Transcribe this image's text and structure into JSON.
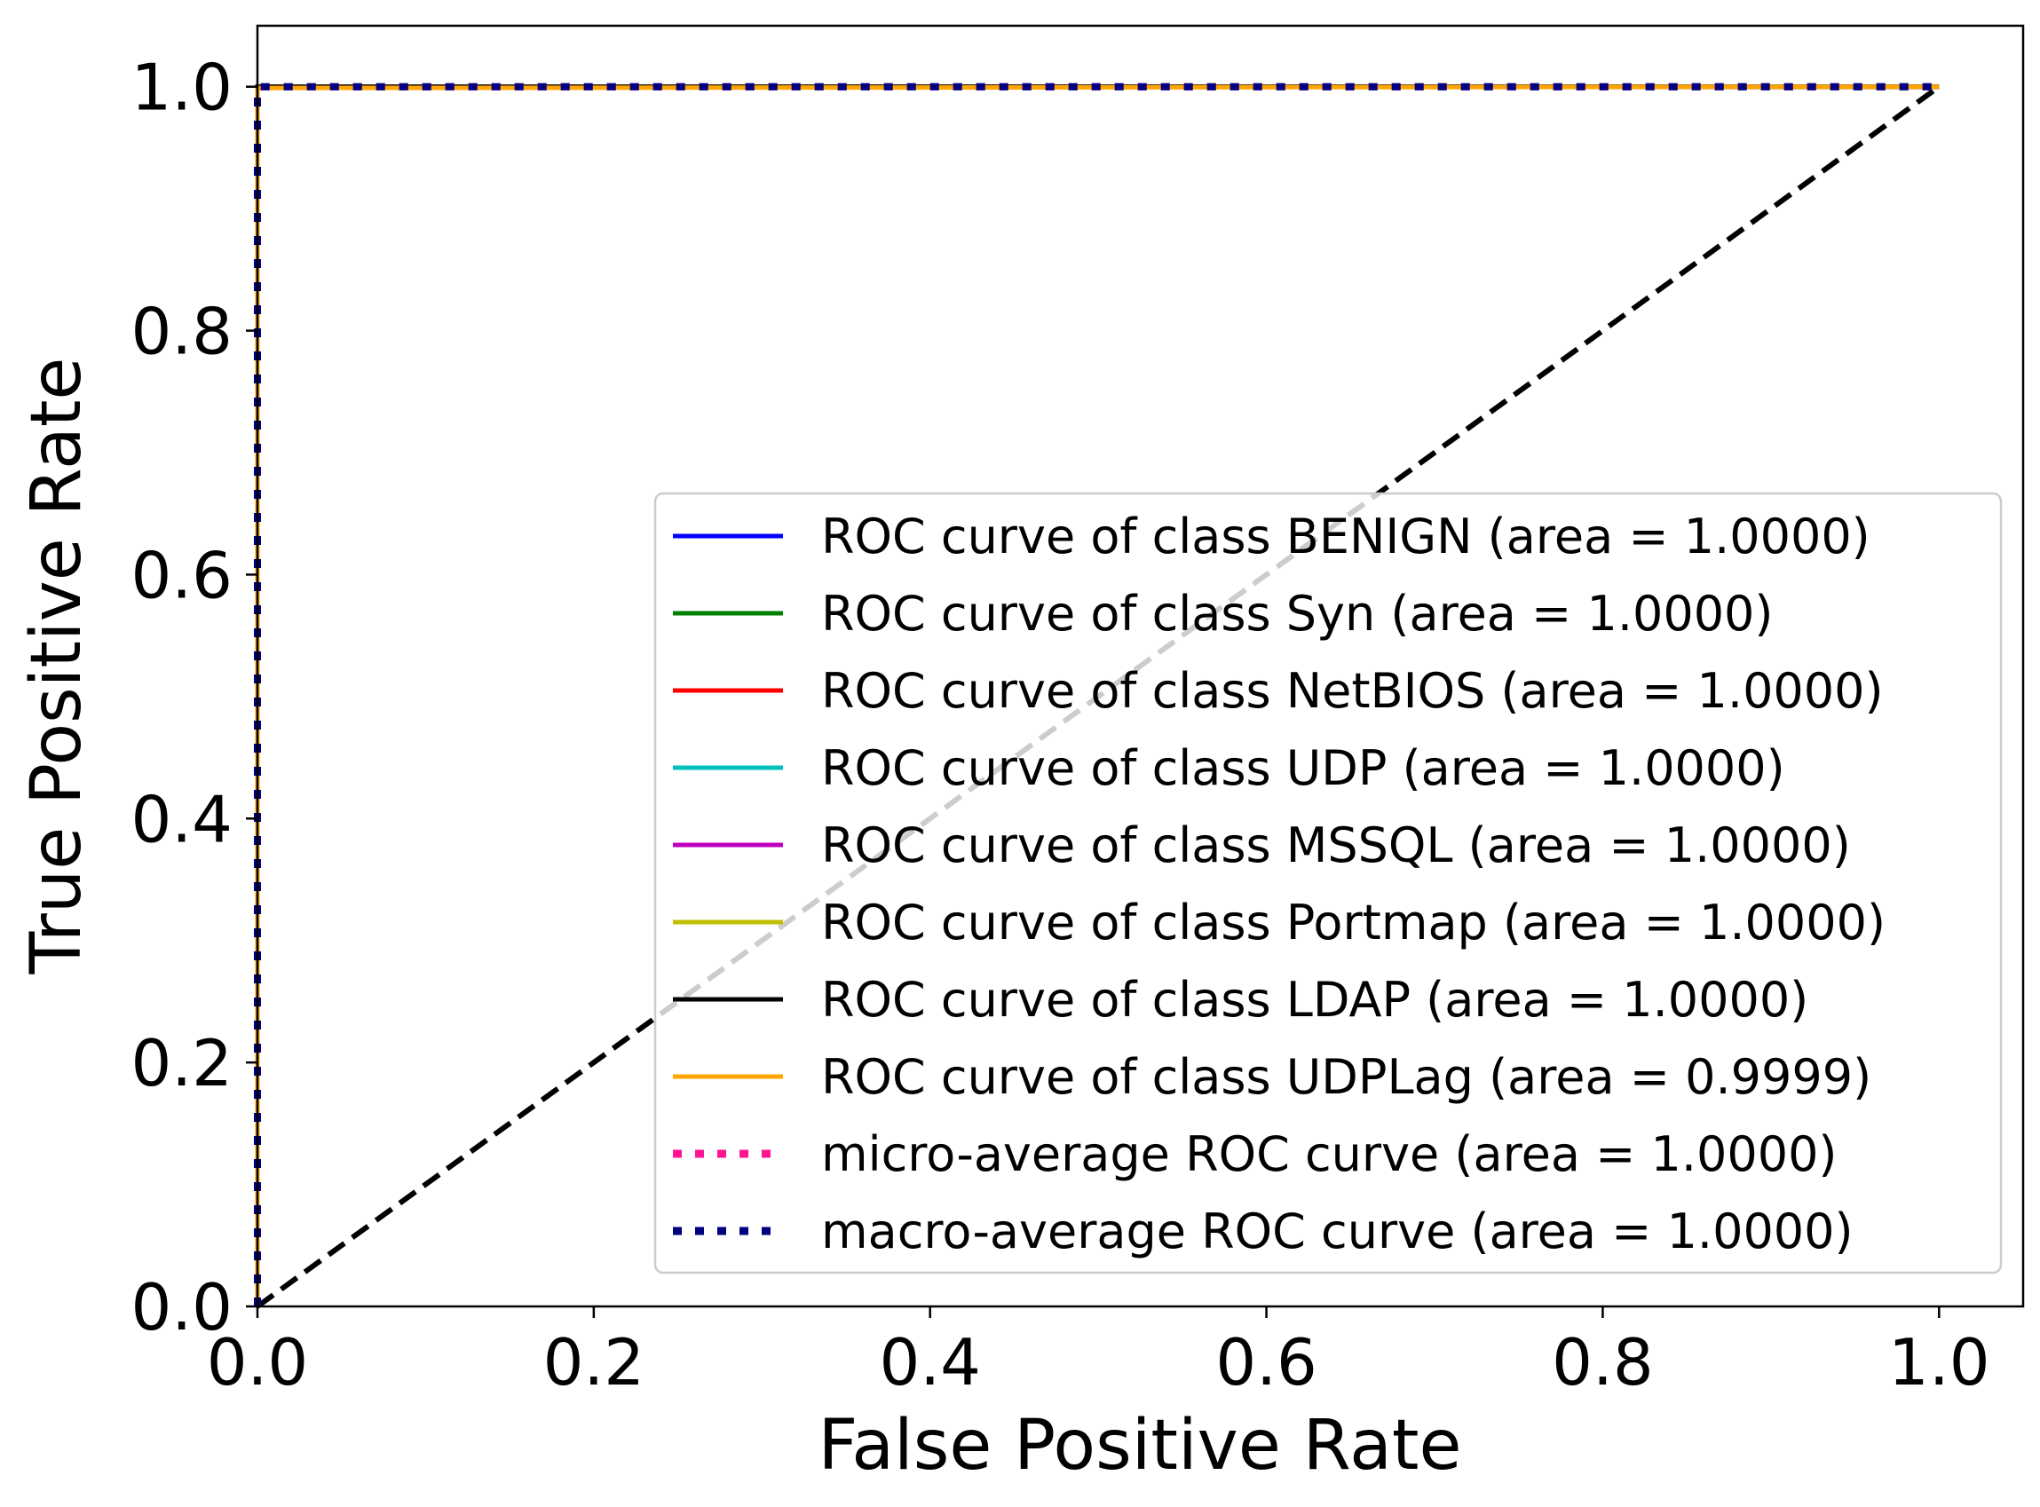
{
  "chart_data": {
    "type": "line",
    "title": "",
    "xlabel": "False Positive Rate",
    "ylabel": "True Positive Rate",
    "xlim": [
      0.0,
      1.05
    ],
    "ylim": [
      0.0,
      1.05
    ],
    "x_ticks": [
      0.0,
      0.2,
      0.4,
      0.6,
      0.8,
      1.0
    ],
    "y_ticks": [
      0.0,
      0.2,
      0.4,
      0.6,
      0.8,
      1.0
    ],
    "x_tick_labels": [
      "0.0",
      "0.2",
      "0.4",
      "0.6",
      "0.8",
      "1.0"
    ],
    "y_tick_labels": [
      "0.0",
      "0.2",
      "0.4",
      "0.6",
      "0.8",
      "1.0"
    ],
    "grid": false,
    "legend_placement": "lower-right",
    "series": [
      {
        "name": "ROC curve of class BENIGN (area = 1.0000)",
        "color": "#0000ff",
        "style": "solid",
        "x": [
          0.0,
          0.0,
          1.0
        ],
        "y": [
          0.0,
          1.0,
          1.0
        ]
      },
      {
        "name": "ROC curve of class Syn (area = 1.0000)",
        "color": "#008000",
        "style": "solid",
        "x": [
          0.0,
          0.0,
          1.0
        ],
        "y": [
          0.0,
          1.0,
          1.0
        ]
      },
      {
        "name": "ROC curve of class NetBIOS (area = 1.0000)",
        "color": "#ff0000",
        "style": "solid",
        "x": [
          0.0,
          0.0,
          1.0
        ],
        "y": [
          0.0,
          1.0,
          1.0
        ]
      },
      {
        "name": "ROC curve of class UDP (area = 1.0000)",
        "color": "#00bfbf",
        "style": "solid",
        "x": [
          0.0,
          0.0,
          1.0
        ],
        "y": [
          0.0,
          1.0,
          1.0
        ]
      },
      {
        "name": "ROC curve of class MSSQL (area = 1.0000)",
        "color": "#bf00bf",
        "style": "solid",
        "x": [
          0.0,
          0.0,
          1.0
        ],
        "y": [
          0.0,
          1.0,
          1.0
        ]
      },
      {
        "name": "ROC curve of class Portmap (area = 1.0000)",
        "color": "#bfbf00",
        "style": "solid",
        "x": [
          0.0,
          0.0,
          1.0
        ],
        "y": [
          0.0,
          1.0,
          1.0
        ]
      },
      {
        "name": "ROC curve of class LDAP (area = 1.0000)",
        "color": "#000000",
        "style": "solid",
        "x": [
          0.0,
          0.0,
          1.0
        ],
        "y": [
          0.0,
          1.0,
          1.0
        ]
      },
      {
        "name": "ROC curve of class UDPLag (area = 0.9999)",
        "color": "#ffa500",
        "style": "solid",
        "x": [
          0.0,
          0.0,
          1.0
        ],
        "y": [
          0.0,
          0.999,
          1.0
        ]
      },
      {
        "name": "micro-average ROC curve (area = 1.0000)",
        "color": "#ff1493",
        "style": "dotted",
        "x": [
          0.0,
          0.0,
          1.0
        ],
        "y": [
          0.0,
          1.0,
          1.0
        ]
      },
      {
        "name": "macro-average ROC curve (area = 1.0000)",
        "color": "#000080",
        "style": "dotted",
        "x": [
          0.0,
          0.0,
          1.0
        ],
        "y": [
          0.0,
          1.0,
          1.0
        ]
      }
    ],
    "reference_line": {
      "x": [
        0.0,
        1.0
      ],
      "y": [
        0.0,
        1.0
      ],
      "color": "#000000",
      "style": "dashed"
    }
  }
}
